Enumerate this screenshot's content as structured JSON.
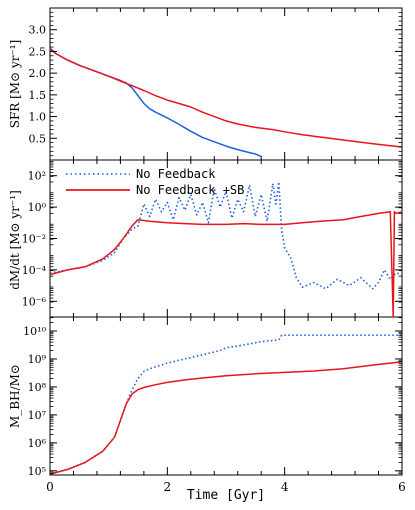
{
  "chart_data": [
    {
      "type": "line",
      "ylabel": "SFR [M⊙ yr⁻¹]",
      "xlim": [
        0,
        6
      ],
      "ylim": [
        0,
        3.5
      ],
      "yscale": "linear",
      "yticks": [
        0.5,
        1.0,
        1.5,
        2.0,
        2.5,
        3.0
      ],
      "ytick_labels": [
        "0.5",
        "1.0",
        "1.5",
        "2.0",
        "2.5",
        "3.0"
      ],
      "series": [
        {
          "color": "#1f5fe0",
          "style": "solid",
          "x": [
            0,
            0.1,
            0.3,
            0.5,
            0.8,
            1.0,
            1.2,
            1.3,
            1.4,
            1.5,
            1.6,
            1.7,
            1.8,
            2.0,
            2.2,
            2.4,
            2.6,
            2.8,
            3.0,
            3.2,
            3.4,
            3.5,
            3.6
          ],
          "y": [
            2.58,
            2.45,
            2.3,
            2.18,
            2.03,
            1.93,
            1.83,
            1.77,
            1.66,
            1.48,
            1.3,
            1.18,
            1.1,
            0.97,
            0.82,
            0.66,
            0.52,
            0.42,
            0.32,
            0.24,
            0.17,
            0.14,
            0.08
          ]
        },
        {
          "color": "#e8141c",
          "style": "solid",
          "x": [
            0,
            0.1,
            0.3,
            0.5,
            0.8,
            1.0,
            1.2,
            1.4,
            1.6,
            1.8,
            2.0,
            2.2,
            2.4,
            2.6,
            2.8,
            3.0,
            3.2,
            3.5,
            3.8,
            4.0,
            4.3,
            4.6,
            5.0,
            5.3,
            5.6,
            5.8,
            6.0
          ],
          "y": [
            2.55,
            2.45,
            2.3,
            2.18,
            2.03,
            1.93,
            1.82,
            1.71,
            1.6,
            1.48,
            1.38,
            1.3,
            1.22,
            1.1,
            1.0,
            0.9,
            0.83,
            0.75,
            0.7,
            0.65,
            0.58,
            0.53,
            0.46,
            0.41,
            0.36,
            0.33,
            0.3
          ]
        }
      ]
    },
    {
      "type": "line",
      "ylabel": "dM/dt [M⊙ yr⁻¹]",
      "xlim": [
        0,
        6
      ],
      "ylim": [
        -7,
        3
      ],
      "yscale": "log10",
      "yticks": [
        -6,
        -4,
        -2,
        0,
        2
      ],
      "ytick_labels": [
        "10⁻⁶",
        "10⁻⁴",
        "10⁻²",
        "10⁰",
        "10²"
      ],
      "legend": {
        "placement": "top-left"
      },
      "series": [
        {
          "name": "No Feedback",
          "color": "#1f5fe0",
          "style": "dotted",
          "x": [
            0,
            0.3,
            0.6,
            0.9,
            1.1,
            1.25,
            1.4,
            1.5,
            1.6,
            1.7,
            1.8,
            1.9,
            2.0,
            2.1,
            2.2,
            2.3,
            2.4,
            2.5,
            2.6,
            2.7,
            2.8,
            2.9,
            3.0,
            3.1,
            3.2,
            3.3,
            3.4,
            3.5,
            3.6,
            3.7,
            3.8,
            3.85,
            3.9,
            3.95,
            4.0,
            4.1,
            4.2,
            4.3,
            4.5,
            4.7,
            4.9,
            5.1,
            5.3,
            5.5,
            5.6,
            5.7,
            5.8,
            5.9,
            6.0
          ],
          "y": [
            -4.2,
            -4.0,
            -3.8,
            -3.4,
            -2.9,
            -2.0,
            -1.4,
            -1.2,
            0.2,
            -0.6,
            0.5,
            -0.3,
            0.3,
            -0.8,
            0.6,
            -0.2,
            0.8,
            -0.5,
            0.3,
            -1.0,
            1.2,
            0.0,
            1.0,
            -0.7,
            0.5,
            -0.3,
            1.4,
            -0.6,
            0.8,
            -0.9,
            1.5,
            0.2,
            1.6,
            -1.5,
            -2.6,
            -3.2,
            -4.5,
            -5.1,
            -4.8,
            -5.2,
            -4.6,
            -5.0,
            -4.5,
            -5.2,
            -4.8,
            -4.0,
            -4.6,
            -4.2,
            -4.3
          ]
        },
        {
          "name": "No Feedback +SB",
          "color": "#e8141c",
          "style": "solid",
          "x": [
            0,
            0.3,
            0.6,
            0.9,
            1.1,
            1.25,
            1.4,
            1.5,
            1.7,
            2.0,
            2.3,
            2.6,
            3.0,
            3.3,
            3.6,
            4.0,
            4.3,
            4.6,
            5.0,
            5.3,
            5.6,
            5.8,
            5.85,
            5.87,
            5.9,
            6.0
          ],
          "y": [
            -4.3,
            -4.0,
            -3.8,
            -3.3,
            -2.7,
            -2.0,
            -1.2,
            -0.8,
            -0.9,
            -1.0,
            -1.05,
            -1.1,
            -1.1,
            -1.05,
            -1.1,
            -1.1,
            -1.0,
            -0.9,
            -0.8,
            -0.6,
            -0.4,
            -0.3,
            -7.0,
            -0.3,
            -0.4,
            -0.3
          ]
        }
      ]
    },
    {
      "type": "line",
      "xlabel": "Time [Gyr]",
      "ylabel": "M_BH/M⊙",
      "xlim": [
        0,
        6
      ],
      "xticks": [
        0,
        2,
        4,
        6
      ],
      "xtick_labels": [
        "0",
        "2",
        "4",
        "6"
      ],
      "ylim": [
        4.85,
        10.5
      ],
      "yscale": "log10",
      "yticks": [
        5,
        6,
        7,
        8,
        9,
        10
      ],
      "ytick_labels": [
        "10⁵",
        "10⁶",
        "10⁷",
        "10⁸",
        "10⁹",
        "10¹⁰"
      ],
      "series": [
        {
          "color": "#1f5fe0",
          "style": "dotted",
          "x": [
            0,
            0.3,
            0.6,
            0.9,
            1.1,
            1.2,
            1.3,
            1.4,
            1.5,
            1.6,
            1.7,
            2.0,
            2.3,
            2.6,
            2.9,
            3.0,
            3.3,
            3.6,
            3.9,
            3.95,
            4.2,
            4.6,
            5.0,
            5.5,
            6.0
          ],
          "y": [
            4.88,
            5.05,
            5.3,
            5.7,
            6.2,
            6.8,
            7.4,
            7.9,
            8.3,
            8.55,
            8.65,
            8.85,
            9.0,
            9.15,
            9.3,
            9.4,
            9.5,
            9.62,
            9.68,
            9.85,
            9.85,
            9.85,
            9.85,
            9.85,
            9.85
          ]
        },
        {
          "color": "#e8141c",
          "style": "solid",
          "x": [
            0,
            0.3,
            0.6,
            0.9,
            1.1,
            1.2,
            1.3,
            1.4,
            1.5,
            1.6,
            1.8,
            2.0,
            2.3,
            2.6,
            3.0,
            3.5,
            4.0,
            4.5,
            5.0,
            5.5,
            5.8,
            6.0
          ],
          "y": [
            4.88,
            5.05,
            5.3,
            5.7,
            6.2,
            6.8,
            7.4,
            7.75,
            7.9,
            7.98,
            8.08,
            8.16,
            8.25,
            8.32,
            8.4,
            8.47,
            8.52,
            8.57,
            8.65,
            8.78,
            8.85,
            8.9
          ]
        }
      ]
    }
  ]
}
